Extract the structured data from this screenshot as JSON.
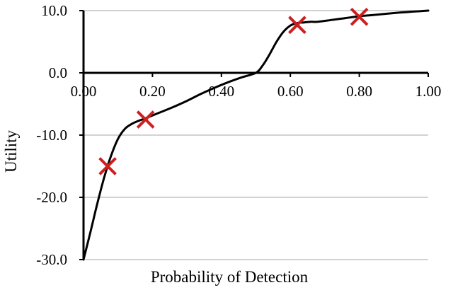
{
  "chart_data": {
    "type": "line",
    "title": "",
    "xlabel": "Probability of Detection",
    "ylabel": "Utility",
    "xlim": [
      0.0,
      1.0
    ],
    "ylim": [
      -30.0,
      10.0
    ],
    "x_ticks": [
      0.0,
      0.2,
      0.4,
      0.6,
      0.8,
      1.0
    ],
    "x_tick_labels": [
      "0.00",
      "0.20",
      "0.40",
      "0.60",
      "0.80",
      "1.00"
    ],
    "y_ticks": [
      10.0,
      0.0,
      -10.0,
      -20.0,
      -30.0
    ],
    "y_tick_labels": [
      "10.0",
      "0.0",
      "-10.0",
      "-20.0",
      "-30.0"
    ],
    "grid": "horizontal",
    "x_axis_position": "y=0",
    "series": [
      {
        "kind": "curve",
        "color": "#000000",
        "x": [
          0.0,
          0.02,
          0.04,
          0.06,
          0.08,
          0.1,
          0.12,
          0.14,
          0.16,
          0.18,
          0.22,
          0.26,
          0.3,
          0.34,
          0.38,
          0.42,
          0.46,
          0.5,
          0.52,
          0.54,
          0.56,
          0.58,
          0.6,
          0.62,
          0.64,
          0.66,
          0.68,
          0.72,
          0.76,
          0.8,
          0.84,
          0.88,
          0.92,
          0.96,
          1.0
        ],
        "y": [
          -30.0,
          -25.6,
          -21.0,
          -16.8,
          -13.3,
          -10.6,
          -9.0,
          -8.2,
          -7.7,
          -7.3,
          -6.4,
          -5.5,
          -4.5,
          -3.4,
          -2.4,
          -1.5,
          -0.7,
          0.0,
          1.2,
          3.0,
          5.0,
          6.6,
          7.6,
          8.0,
          8.1,
          8.2,
          8.2,
          8.5,
          8.8,
          9.1,
          9.3,
          9.5,
          9.7,
          9.85,
          10.0
        ]
      },
      {
        "kind": "markers",
        "marker": "x",
        "color": "#cc1f1f",
        "x": [
          0.07,
          0.18,
          0.62,
          0.8
        ],
        "y": [
          -15.0,
          -7.5,
          7.7,
          9.0
        ]
      }
    ]
  }
}
